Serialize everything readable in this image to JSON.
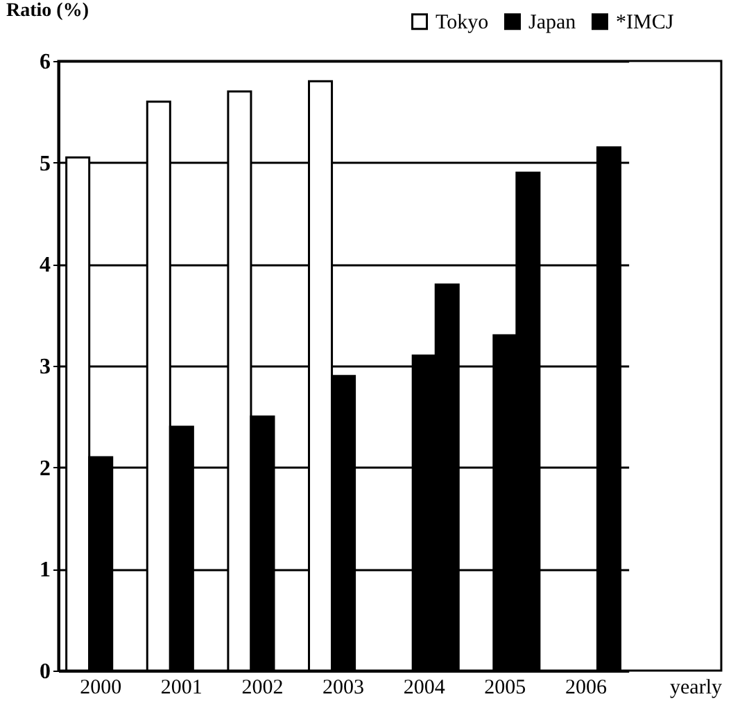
{
  "chart_data": {
    "type": "bar",
    "ylabel": "Ratio (%)",
    "xlabel": "yearly",
    "categories": [
      "2000",
      "2001",
      "2002",
      "2003",
      "2004",
      "2005",
      "2006"
    ],
    "series": [
      {
        "name": "Tokyo",
        "color": "#ffffff",
        "values": [
          5.05,
          5.6,
          5.7,
          5.8,
          null,
          null,
          null
        ]
      },
      {
        "name": "Japan",
        "color": "#000000",
        "values": [
          2.1,
          2.4,
          2.5,
          2.9,
          3.1,
          3.3,
          null
        ]
      },
      {
        "name": "*IMCJ",
        "color": "#000000",
        "values": [
          null,
          null,
          null,
          null,
          3.8,
          4.9,
          5.15
        ]
      }
    ],
    "ylim": [
      0,
      6
    ],
    "yticks": [
      0,
      1,
      2,
      3,
      4,
      5,
      6
    ],
    "grid": "y",
    "legend": "top right"
  }
}
